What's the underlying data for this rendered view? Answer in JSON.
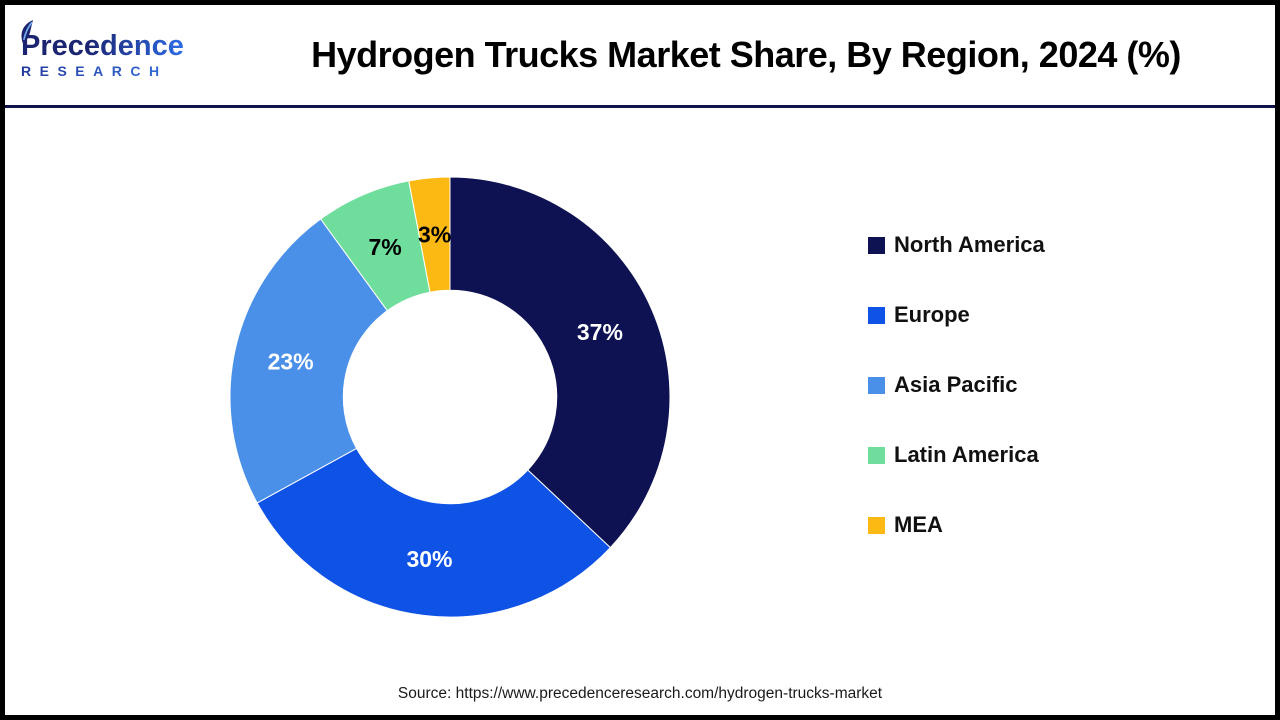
{
  "header": {
    "brand": {
      "name": "Precedence",
      "subtitle": "RESEARCH"
    },
    "title": "Hydrogen Trucks Market Share, By Region, 2024 (%)"
  },
  "chart_data": {
    "type": "pie",
    "subtype": "donut",
    "title": "Hydrogen Trucks Market Share, By Region, 2024 (%)",
    "unit": "%",
    "categories": [
      "North America",
      "Europe",
      "Asia Pacific",
      "Latin America",
      "MEA"
    ],
    "values": [
      37,
      30,
      23,
      7,
      3
    ],
    "data_labels": [
      "37%",
      "30%",
      "23%",
      "7%",
      "3%"
    ],
    "colors": [
      "#0e1252",
      "#0f52e6",
      "#4a90e8",
      "#6fdd9c",
      "#fcb914"
    ],
    "label_text_colors": [
      "#ffffff",
      "#ffffff",
      "#ffffff",
      "#000000",
      "#000000"
    ],
    "start_angle_deg": 0,
    "direction": "clockwise",
    "inner_radius_ratio": 0.485,
    "legend_position": "right"
  },
  "footer": {
    "source": "Source: https://www.precedenceresearch.com/hydrogen-trucks-market"
  },
  "style": {
    "divider_color": "#13134b",
    "frame_border_color": "#000000",
    "brand_navy": "#1b2470",
    "brand_blue": "#2e6ce6"
  }
}
